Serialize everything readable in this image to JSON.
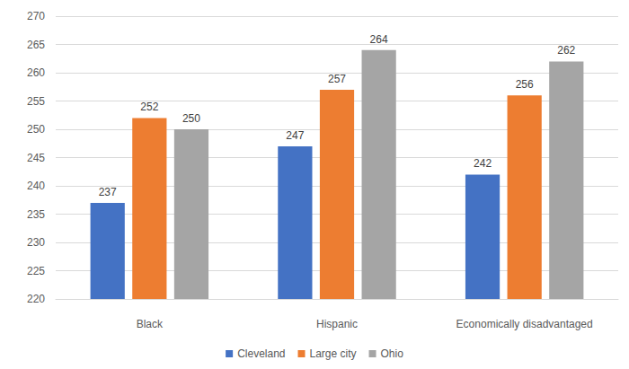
{
  "chart_data": {
    "type": "bar",
    "categories": [
      "Black",
      "Hispanic",
      "Economically disadvantaged"
    ],
    "series": [
      {
        "name": "Cleveland",
        "color": "#4472c4",
        "values": [
          237,
          247,
          242
        ]
      },
      {
        "name": "Large city",
        "color": "#ed7d31",
        "values": [
          252,
          257,
          256
        ]
      },
      {
        "name": "Ohio",
        "color": "#a5a5a5",
        "values": [
          250,
          264,
          262
        ]
      }
    ],
    "ylim": [
      220,
      270
    ],
    "yticks": [
      220,
      225,
      230,
      235,
      240,
      245,
      250,
      255,
      260,
      265,
      270
    ],
    "grid": true,
    "legend": "bottom",
    "data_labels": true
  }
}
